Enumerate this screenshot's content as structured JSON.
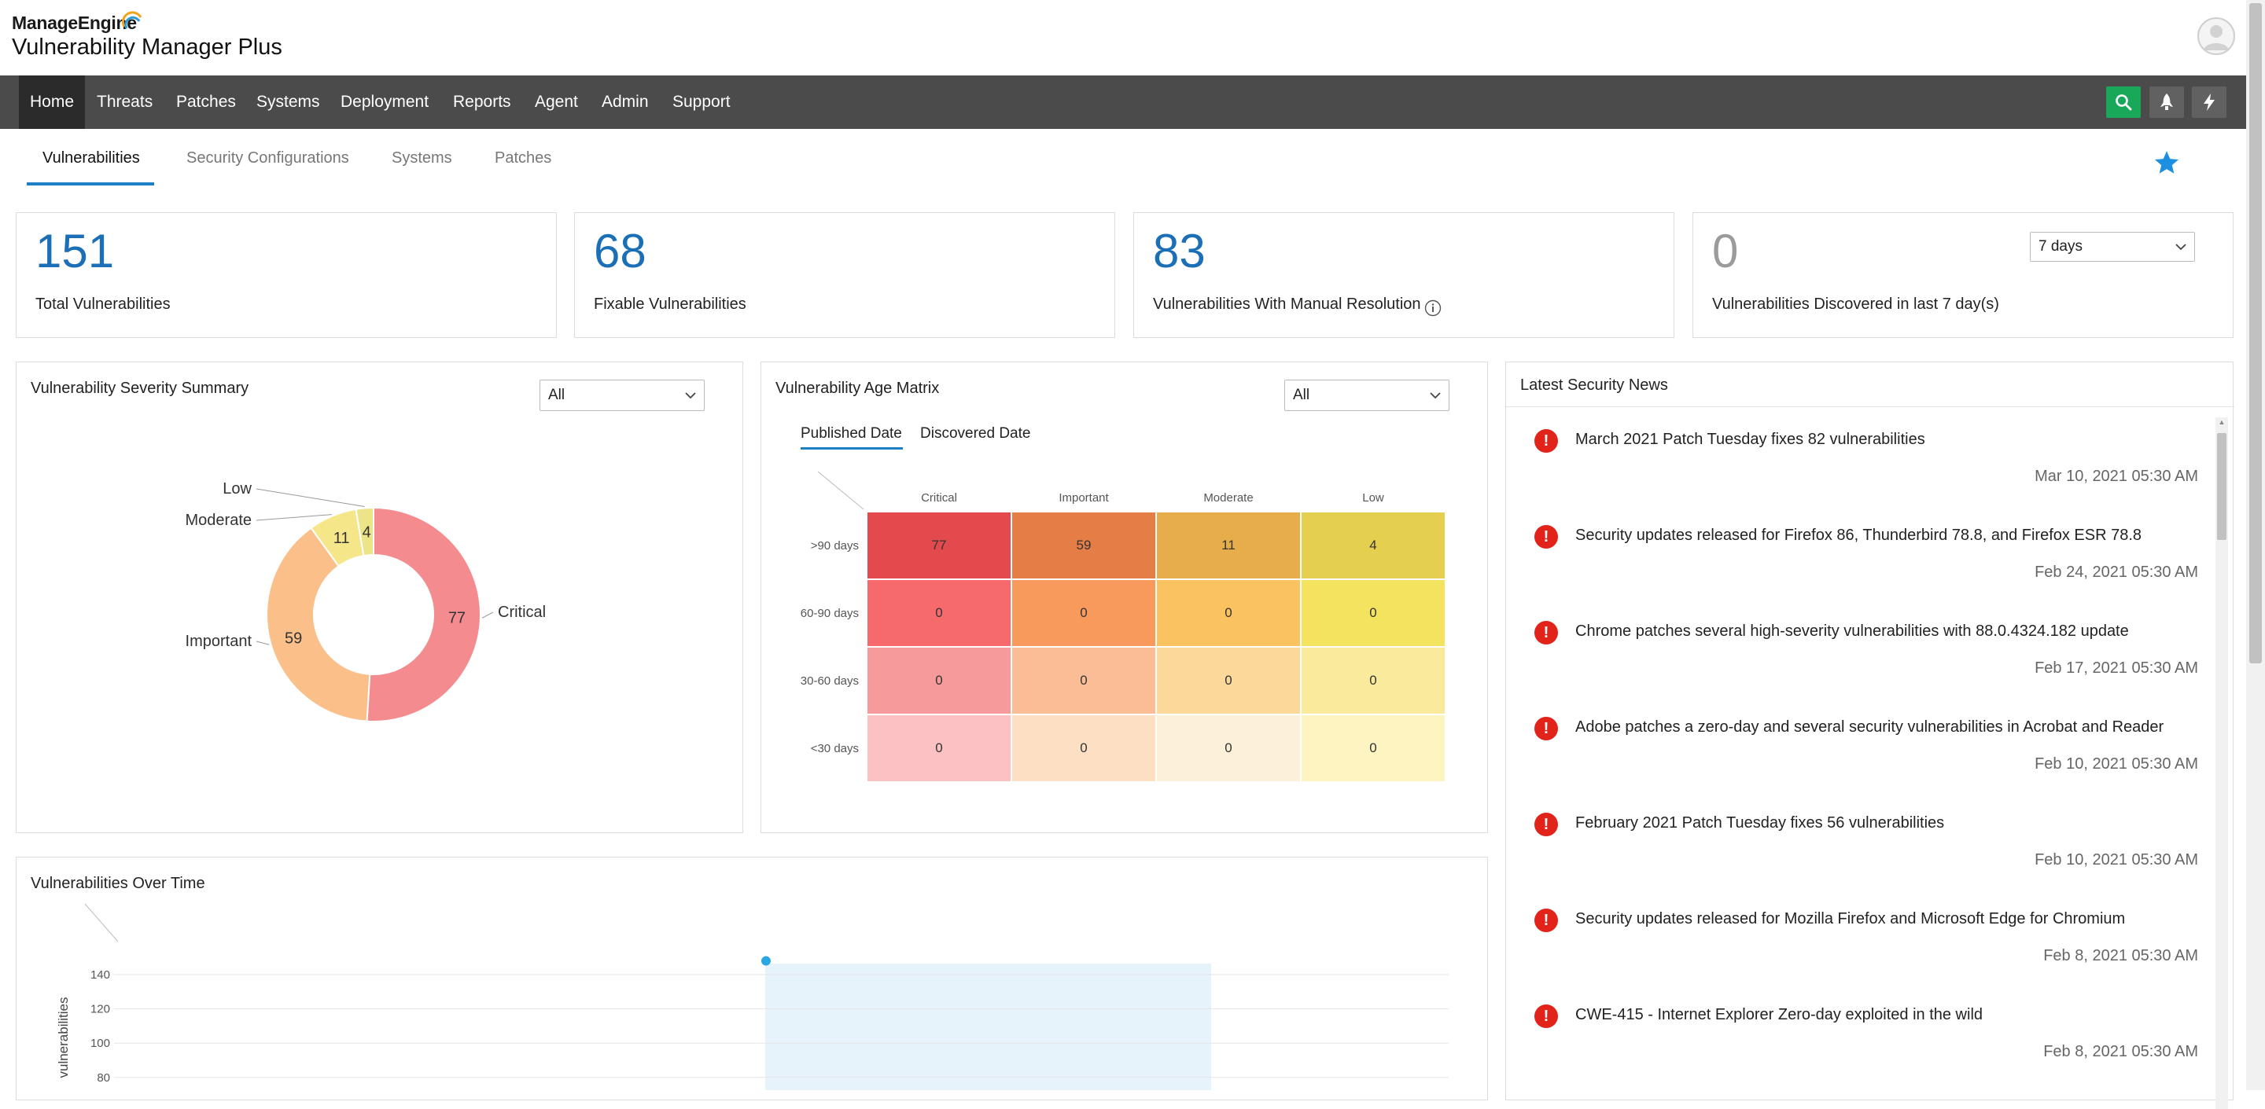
{
  "header": {
    "brand_top": "ManageEngine",
    "product_name": "Vulnerability Manager Plus"
  },
  "nav": {
    "items": [
      "Home",
      "Threats",
      "Patches",
      "Systems",
      "Deployment",
      "Reports",
      "Agent",
      "Admin",
      "Support"
    ],
    "active": "Home",
    "buttons": [
      "search-icon",
      "rocket-icon",
      "lightning-icon"
    ]
  },
  "tabs": {
    "items": [
      "Vulnerabilities",
      "Security Configurations",
      "Systems",
      "Patches"
    ],
    "active": "Vulnerabilities"
  },
  "summary_cards": [
    {
      "value": "151",
      "label": "Total Vulnerabilities"
    },
    {
      "value": "68",
      "label": "Fixable Vulnerabilities"
    },
    {
      "value": "83",
      "label": "Vulnerabilities With Manual Resolution"
    },
    {
      "value": "0",
      "label": "Vulnerabilities Discovered in last 7 day(s)"
    }
  ],
  "days_select": "7 days",
  "severity_summary": {
    "title": "Vulnerability Severity Summary",
    "filter": "All"
  },
  "age_matrix": {
    "title": "Vulnerability Age Matrix",
    "filter": "All",
    "tabs": [
      "Published Date",
      "Discovered Date"
    ],
    "active_tab": "Published Date"
  },
  "news": {
    "title": "Latest Security News",
    "items": [
      {
        "title": "March 2021 Patch Tuesday fixes 82 vulnerabilities",
        "date": "Mar 10, 2021 05:30 AM"
      },
      {
        "title": "Security updates released for Firefox 86, Thunderbird 78.8, and Firefox ESR 78.8",
        "date": "Feb 24, 2021 05:30 AM"
      },
      {
        "title": "Chrome patches several high-severity vulnerabilities with 88.0.4324.182 update",
        "date": "Feb 17, 2021 05:30 AM"
      },
      {
        "title": "Adobe patches a zero-day and several security vulnerabilities in Acrobat and Reader",
        "date": "Feb 10, 2021 05:30 AM"
      },
      {
        "title": "February 2021 Patch Tuesday fixes 56 vulnerabilities",
        "date": "Feb 10, 2021 05:30 AM"
      },
      {
        "title": "Security updates released for Mozilla Firefox and Microsoft Edge for Chromium",
        "date": "Feb 8, 2021 05:30 AM"
      },
      {
        "title": "CWE-415 - Internet Explorer Zero-day exploited in the wild",
        "date": "Feb 8, 2021 05:30 AM"
      }
    ]
  },
  "over_time": {
    "title": "Vulnerabilities Over Time"
  },
  "colors": {
    "accent": "#1d7fc4",
    "nav_bg": "#4b4b4b",
    "search_btn": "#19a85a",
    "critical": "#f48b8f",
    "important": "#fbc08a",
    "moderate": "#f6e68a",
    "low": "#ece488"
  },
  "chart_data": [
    {
      "type": "pie",
      "title": "Vulnerability Severity Summary",
      "labels": [
        "Critical",
        "Important",
        "Moderate",
        "Low"
      ],
      "values": [
        77,
        59,
        11,
        4
      ],
      "colors": [
        "#f48b8f",
        "#fbc08a",
        "#f6e68a",
        "#ece488"
      ]
    },
    {
      "type": "heatmap",
      "title": "Vulnerability Age Matrix",
      "x": [
        "Critical",
        "Important",
        "Moderate",
        "Low"
      ],
      "y": [
        ">90 days",
        "60-90 days",
        "30-60 days",
        "<30 days"
      ],
      "values": [
        [
          77,
          59,
          11,
          4
        ],
        [
          0,
          0,
          0,
          0
        ],
        [
          0,
          0,
          0,
          0
        ],
        [
          0,
          0,
          0,
          0
        ]
      ],
      "colors": [
        [
          "#e24a4d",
          "#e57d47",
          "#e7ad4a",
          "#e4cf4e"
        ],
        [
          "#f76a6c",
          "#f99a5d",
          "#fbc35f",
          "#f4e35f"
        ],
        [
          "#f79a9c",
          "#fbbd96",
          "#fbd99b",
          "#f9eb9b"
        ],
        [
          "#fcc2c3",
          "#fde0c4",
          "#fdf0d8",
          "#fdf4c2"
        ]
      ]
    },
    {
      "type": "line",
      "title": "Vulnerabilities Over Time",
      "ylabel": "vulnerabilities",
      "yticks": [
        80,
        100,
        120,
        140
      ],
      "series": [
        {
          "values": [
            148
          ]
        }
      ]
    }
  ]
}
